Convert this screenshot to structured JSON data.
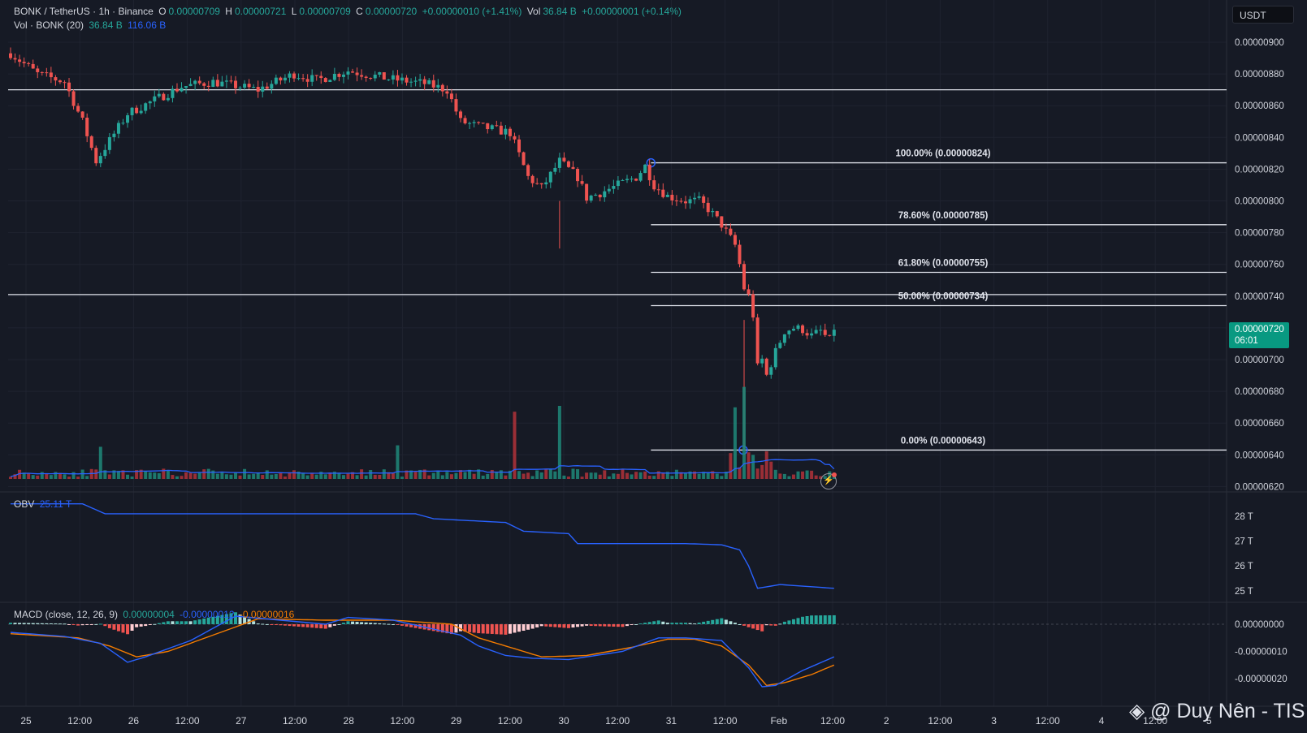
{
  "header": {
    "symbol": "BONK / TetherUS · 1h · Binance",
    "open_label": "O",
    "open": "0.00000709",
    "high_label": "H",
    "high": "0.00000721",
    "low_label": "L",
    "low": "0.00000709",
    "close_label": "C",
    "close": "0.00000720",
    "change": "+0.00000010 (+1.41%)",
    "vol_label": "Vol",
    "vol": "36.84 B",
    "vol_change": "+0.00000001 (+0.14%)"
  },
  "volume_legend": {
    "label": "Vol · BONK (20)",
    "value": "36.84 B",
    "ma": "116.06 B"
  },
  "obv_legend": {
    "label": "OBV",
    "value": "25.11 T"
  },
  "macd_legend": {
    "label": "MACD (close, 12, 26, 9)",
    "hist": "0.00000004",
    "macd": "-0.00000012",
    "signal": "-0.00000016"
  },
  "currency": "USDT",
  "last_price": {
    "price": "0.00000720",
    "countdown": "06:01"
  },
  "watermark": "@ Duy Nên - TIS",
  "fib_levels": [
    {
      "label": "100.00% (0.00000824)",
      "price": 8.24e-06
    },
    {
      "label": "78.60% (0.00000785)",
      "price": 7.85e-06
    },
    {
      "label": "61.80% (0.00000755)",
      "price": 7.55e-06
    },
    {
      "label": "50.00% (0.00000734)",
      "price": 7.34e-06
    },
    {
      "label": "0.00% (0.00000643)",
      "price": 6.43e-06
    }
  ],
  "horizontal_levels": [
    8.7e-06,
    7.41e-06
  ],
  "price_axis": [
    "0.00000900",
    "0.00000880",
    "0.00000860",
    "0.00000840",
    "0.00000820",
    "0.00000800",
    "0.00000780",
    "0.00000760",
    "0.00000740",
    "0.00000720",
    "0.00000700",
    "0.00000680",
    "0.00000660",
    "0.00000640",
    "0.00000620"
  ],
  "obv_axis": [
    "28 T",
    "27 T",
    "26 T",
    "25 T"
  ],
  "macd_axis": [
    "0.00000000",
    "-0.00000010",
    "-0.00000020"
  ],
  "time_axis": [
    "25",
    "12:00",
    "26",
    "12:00",
    "27",
    "12:00",
    "28",
    "12:00",
    "29",
    "12:00",
    "30",
    "12:00",
    "31",
    "12:00",
    "Feb",
    "12:00",
    "2",
    "12:00",
    "3",
    "12:00",
    "4",
    "12:00",
    "5"
  ],
  "colors": {
    "up": "#26a69a",
    "down": "#ef5350",
    "obv": "#2962ff",
    "macd": "#2962ff",
    "signal": "#f57c00",
    "bg": "#161a25"
  },
  "chart_data": {
    "type": "candlestick",
    "price_close_anchors": [
      [
        0,
        8.93e-06
      ],
      [
        6,
        8.8e-06
      ],
      [
        12,
        8.75e-06
      ],
      [
        16,
        8.5e-06
      ],
      [
        19,
        8.25e-06
      ],
      [
        22,
        8.38e-06
      ],
      [
        26,
        8.55e-06
      ],
      [
        33,
        8.65e-06
      ],
      [
        38,
        8.72e-06
      ],
      [
        45,
        8.75e-06
      ],
      [
        55,
        8.7e-06
      ],
      [
        63,
        8.8e-06
      ],
      [
        68,
        8.76e-06
      ],
      [
        75,
        8.82e-06
      ],
      [
        84,
        8.77e-06
      ],
      [
        92,
        8.74e-06
      ],
      [
        97,
        8.7e-06
      ],
      [
        100,
        8.5e-06
      ],
      [
        104,
        8.47e-06
      ],
      [
        111,
        8.43e-06
      ],
      [
        115,
        8.15e-06
      ],
      [
        118,
        8.08e-06
      ],
      [
        122,
        8.25e-06
      ],
      [
        126,
        8.15e-06
      ],
      [
        128,
        8.02e-06
      ],
      [
        131,
        8.05e-06
      ],
      [
        135,
        8.1e-06
      ],
      [
        139,
        8.15e-06
      ],
      [
        141,
        8.22e-06
      ],
      [
        143,
        8.1e-06
      ],
      [
        146,
        8.03e-06
      ],
      [
        150,
        8e-06
      ],
      [
        153,
        8e-06
      ],
      [
        155,
        7.95e-06
      ],
      [
        158,
        7.85e-06
      ],
      [
        161,
        7.72e-06
      ],
      [
        162,
        7.6e-06
      ],
      [
        163,
        7.45e-06
      ],
      [
        164,
        7.4e-06
      ],
      [
        165,
        7.28e-06
      ],
      [
        166,
        6.95e-06
      ],
      [
        167,
        7e-06
      ],
      [
        168,
        6.9e-06
      ],
      [
        170,
        7.05e-06
      ],
      [
        172,
        7.18e-06
      ],
      [
        174,
        7.2e-06
      ],
      [
        176,
        7.19e-06
      ],
      [
        178,
        7.15e-06
      ],
      [
        180,
        7.18e-06
      ],
      [
        182,
        7.12e-06
      ],
      [
        183,
        7.2e-06
      ]
    ],
    "volume_spikes": [
      [
        20,
        2.2
      ],
      [
        86,
        2.3
      ],
      [
        112,
        4.6
      ],
      [
        122,
        5.0
      ],
      [
        161,
        4.9
      ],
      [
        163,
        6.3
      ]
    ],
    "obv_anchors": [
      [
        0,
        28.5
      ],
      [
        16,
        28.5
      ],
      [
        21,
        28.1
      ],
      [
        40,
        28.1
      ],
      [
        90,
        28.1
      ],
      [
        94,
        27.9
      ],
      [
        110,
        27.75
      ],
      [
        114,
        27.4
      ],
      [
        124,
        27.3
      ],
      [
        126,
        26.9
      ],
      [
        140,
        26.9
      ],
      [
        150,
        26.9
      ],
      [
        158,
        26.85
      ],
      [
        162,
        26.65
      ],
      [
        164,
        26.0
      ],
      [
        166,
        25.1
      ],
      [
        171,
        25.25
      ],
      [
        183,
        25.1
      ]
    ],
    "macd_anchors": [
      [
        0,
        -0.3
      ],
      [
        12,
        -0.45
      ],
      [
        20,
        -0.7
      ],
      [
        26,
        -1.4
      ],
      [
        30,
        -1.2
      ],
      [
        40,
        -0.6
      ],
      [
        50,
        0.3
      ],
      [
        70,
        0.0
      ],
      [
        75,
        0.25
      ],
      [
        85,
        0.15
      ],
      [
        100,
        -0.4
      ],
      [
        104,
        -0.8
      ],
      [
        110,
        -1.15
      ],
      [
        116,
        -1.25
      ],
      [
        124,
        -1.3
      ],
      [
        136,
        -1.0
      ],
      [
        144,
        -0.5
      ],
      [
        150,
        -0.5
      ],
      [
        158,
        -0.6
      ],
      [
        164,
        -1.6
      ],
      [
        167,
        -2.3
      ],
      [
        170,
        -2.25
      ],
      [
        176,
        -1.7
      ],
      [
        183,
        -1.2
      ]
    ],
    "signal_anchors": [
      [
        0,
        -0.35
      ],
      [
        15,
        -0.5
      ],
      [
        22,
        -0.8
      ],
      [
        28,
        -1.2
      ],
      [
        35,
        -1.0
      ],
      [
        45,
        -0.4
      ],
      [
        55,
        0.2
      ],
      [
        70,
        0.15
      ],
      [
        85,
        0.15
      ],
      [
        98,
        0.0
      ],
      [
        104,
        -0.5
      ],
      [
        112,
        -0.9
      ],
      [
        118,
        -1.2
      ],
      [
        128,
        -1.15
      ],
      [
        138,
        -0.85
      ],
      [
        146,
        -0.55
      ],
      [
        152,
        -0.55
      ],
      [
        158,
        -0.8
      ],
      [
        164,
        -1.5
      ],
      [
        168,
        -2.25
      ],
      [
        172,
        -2.15
      ],
      [
        178,
        -1.85
      ],
      [
        183,
        -1.5
      ]
    ],
    "xlabel": "",
    "ylabel": ""
  }
}
